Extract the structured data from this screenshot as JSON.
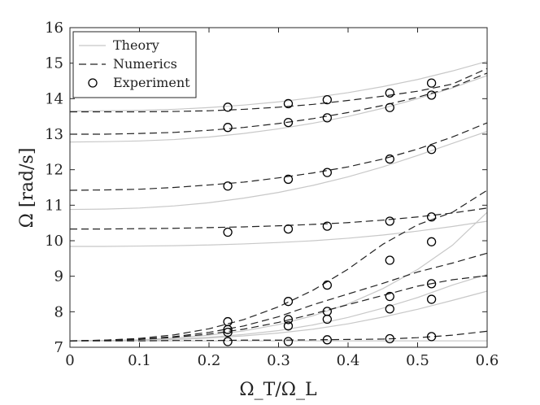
{
  "chart_data": {
    "type": "line",
    "xlabel": "Ω_T/Ω_L",
    "ylabel": "Ω [rad/s]",
    "xlim": [
      0,
      0.6
    ],
    "ylim": [
      7,
      16
    ],
    "xticks": [
      "0",
      "0.1",
      "0.2",
      "0.3",
      "0.4",
      "0.5",
      "0.6"
    ],
    "yticks": [
      "7",
      "8",
      "9",
      "10",
      "11",
      "12",
      "13",
      "14",
      "15",
      "16"
    ],
    "grid": false,
    "legend_position": "top-left",
    "legend": [
      {
        "label": "Theory",
        "style": "solid-gray"
      },
      {
        "label": "Numerics",
        "style": "dashed-black"
      },
      {
        "label": "Experiment",
        "style": "circle-marker"
      }
    ],
    "colors": {
      "theory": "#c8c8c8",
      "numerics": "#222222",
      "experiment": "#000000"
    },
    "x": [
      0,
      0.05,
      0.1,
      0.15,
      0.2,
      0.25,
      0.3,
      0.35,
      0.4,
      0.45,
      0.5,
      0.55,
      0.6
    ],
    "series": [
      {
        "name": "Theory",
        "values": [
          7.18,
          7.19,
          7.21,
          7.26,
          7.34,
          7.46,
          7.64,
          7.89,
          8.22,
          8.65,
          9.19,
          9.87,
          10.8
        ]
      },
      {
        "name": "Theory",
        "values": [
          7.18,
          7.19,
          7.2,
          7.23,
          7.28,
          7.36,
          7.47,
          7.63,
          7.84,
          8.1,
          8.4,
          8.75,
          9.05
        ]
      },
      {
        "name": "Theory",
        "values": [
          7.18,
          7.19,
          7.2,
          7.22,
          7.26,
          7.32,
          7.4,
          7.51,
          7.66,
          7.85,
          8.07,
          8.32,
          8.58
        ]
      },
      {
        "name": "Theory",
        "values": [
          7.18,
          7.18,
          7.18,
          7.18,
          7.18,
          7.18,
          7.18,
          7.18,
          7.18,
          7.18,
          7.18,
          7.18,
          7.18
        ]
      },
      {
        "name": "Theory",
        "values": [
          9.84,
          9.84,
          9.85,
          9.86,
          9.88,
          9.91,
          9.95,
          10.0,
          10.07,
          10.16,
          10.27,
          10.4,
          10.55
        ]
      },
      {
        "name": "Theory",
        "values": [
          10.88,
          10.89,
          10.92,
          10.98,
          11.07,
          11.2,
          11.36,
          11.56,
          11.8,
          12.08,
          12.4,
          12.74,
          13.08
        ]
      },
      {
        "name": "Theory",
        "values": [
          12.78,
          12.79,
          12.81,
          12.85,
          12.92,
          13.02,
          13.15,
          13.31,
          13.5,
          13.73,
          14.0,
          14.3,
          14.65
        ]
      },
      {
        "name": "Theory",
        "values": [
          13.65,
          13.66,
          13.67,
          13.7,
          13.75,
          13.82,
          13.91,
          14.03,
          14.17,
          14.34,
          14.54,
          14.78,
          15.05
        ]
      },
      {
        "name": "Numerics",
        "values": [
          7.18,
          7.2,
          7.25,
          7.35,
          7.52,
          7.78,
          8.14,
          8.61,
          9.2,
          9.9,
          10.45,
          10.8,
          11.42
        ]
      },
      {
        "name": "Numerics",
        "values": [
          7.18,
          7.2,
          7.23,
          7.3,
          7.42,
          7.6,
          7.86,
          8.2,
          8.5,
          8.8,
          9.12,
          9.37,
          9.65
        ]
      },
      {
        "name": "Numerics",
        "values": [
          7.18,
          7.19,
          7.22,
          7.28,
          7.37,
          7.51,
          7.7,
          7.94,
          8.2,
          8.46,
          8.72,
          8.9,
          9.02
        ]
      },
      {
        "name": "Numerics",
        "values": [
          7.18,
          7.18,
          7.18,
          7.19,
          7.19,
          7.2,
          7.2,
          7.21,
          7.22,
          7.23,
          7.27,
          7.34,
          7.45
        ]
      },
      {
        "name": "Numerics",
        "values": [
          10.33,
          10.33,
          10.34,
          10.35,
          10.37,
          10.39,
          10.42,
          10.46,
          10.51,
          10.58,
          10.67,
          10.78,
          10.92
        ]
      },
      {
        "name": "Numerics",
        "values": [
          11.42,
          11.43,
          11.45,
          11.5,
          11.57,
          11.65,
          11.77,
          11.91,
          12.08,
          12.3,
          12.58,
          12.92,
          13.32
        ]
      },
      {
        "name": "Numerics",
        "values": [
          13.0,
          13.0,
          13.02,
          13.05,
          13.11,
          13.19,
          13.3,
          13.44,
          13.61,
          13.81,
          14.04,
          14.32,
          14.72
        ]
      },
      {
        "name": "Numerics",
        "values": [
          13.63,
          13.63,
          13.63,
          13.64,
          13.66,
          13.7,
          13.76,
          13.84,
          13.95,
          14.07,
          14.21,
          14.41,
          14.85
        ]
      }
    ],
    "experiment": [
      {
        "x": 0.227,
        "y": 13.76
      },
      {
        "x": 0.314,
        "y": 13.86
      },
      {
        "x": 0.37,
        "y": 13.97
      },
      {
        "x": 0.46,
        "y": 14.16
      },
      {
        "x": 0.52,
        "y": 14.44
      },
      {
        "x": 0.227,
        "y": 13.19
      },
      {
        "x": 0.314,
        "y": 13.33
      },
      {
        "x": 0.37,
        "y": 13.46
      },
      {
        "x": 0.46,
        "y": 13.75
      },
      {
        "x": 0.52,
        "y": 14.1
      },
      {
        "x": 0.227,
        "y": 11.54
      },
      {
        "x": 0.314,
        "y": 11.73
      },
      {
        "x": 0.37,
        "y": 11.92
      },
      {
        "x": 0.46,
        "y": 12.3
      },
      {
        "x": 0.52,
        "y": 12.57
      },
      {
        "x": 0.227,
        "y": 10.24
      },
      {
        "x": 0.314,
        "y": 10.33
      },
      {
        "x": 0.37,
        "y": 10.41
      },
      {
        "x": 0.46,
        "y": 10.55
      },
      {
        "x": 0.52,
        "y": 10.67
      },
      {
        "x": 0.314,
        "y": 8.29
      },
      {
        "x": 0.37,
        "y": 8.75
      },
      {
        "x": 0.46,
        "y": 9.45
      },
      {
        "x": 0.52,
        "y": 9.97
      },
      {
        "x": 0.227,
        "y": 7.72
      },
      {
        "x": 0.314,
        "y": 7.78
      },
      {
        "x": 0.37,
        "y": 8.01
      },
      {
        "x": 0.46,
        "y": 8.43
      },
      {
        "x": 0.52,
        "y": 8.79
      },
      {
        "x": 0.227,
        "y": 7.5
      },
      {
        "x": 0.314,
        "y": 7.6
      },
      {
        "x": 0.37,
        "y": 7.79
      },
      {
        "x": 0.46,
        "y": 8.08
      },
      {
        "x": 0.52,
        "y": 8.35
      },
      {
        "x": 0.227,
        "y": 7.42
      },
      {
        "x": 0.227,
        "y": 7.16
      },
      {
        "x": 0.314,
        "y": 7.16
      },
      {
        "x": 0.37,
        "y": 7.21
      },
      {
        "x": 0.46,
        "y": 7.24
      },
      {
        "x": 0.52,
        "y": 7.3
      }
    ]
  }
}
